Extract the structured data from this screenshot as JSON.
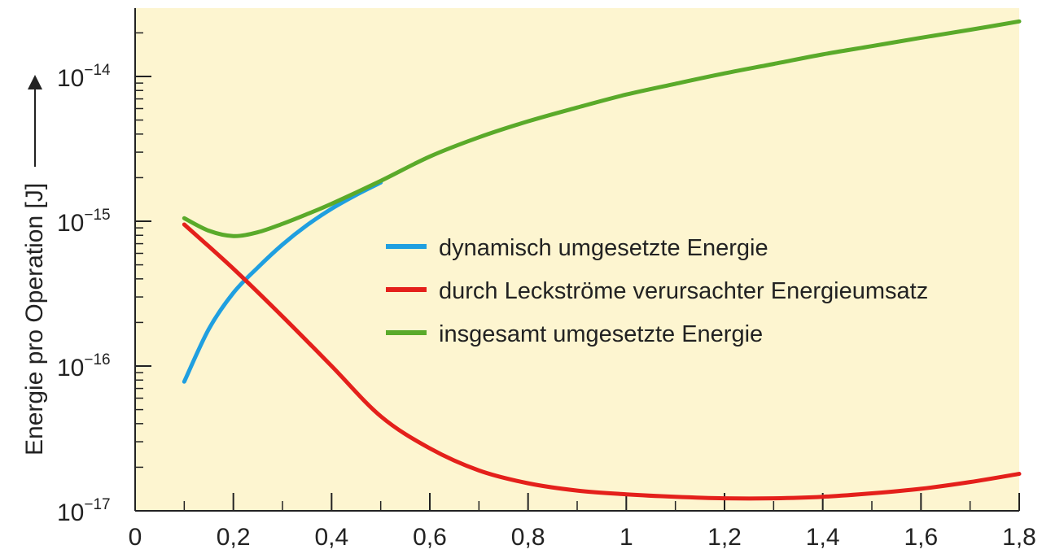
{
  "chart_data": {
    "type": "line",
    "ylabel": "Energie pro Operation [J]",
    "xlabel": "",
    "xlim": [
      0,
      1.8
    ],
    "ylim": [
      1e-17,
      3e-14
    ],
    "y_scale": "log",
    "x_ticks": [
      {
        "value": 0,
        "label": "0"
      },
      {
        "value": 0.2,
        "label": "0,2"
      },
      {
        "value": 0.4,
        "label": "0,4"
      },
      {
        "value": 0.6,
        "label": "0,6"
      },
      {
        "value": 0.8,
        "label": "0,8"
      },
      {
        "value": 1.0,
        "label": "1"
      },
      {
        "value": 1.2,
        "label": "1,2"
      },
      {
        "value": 1.4,
        "label": "1,4"
      },
      {
        "value": 1.6,
        "label": "1,6"
      },
      {
        "value": 1.8,
        "label": "1,8"
      }
    ],
    "y_ticks": [
      {
        "value": 1e-17,
        "base": "10",
        "exp": "−17"
      },
      {
        "value": 1e-16,
        "base": "10",
        "exp": "−16"
      },
      {
        "value": 1e-15,
        "base": "10",
        "exp": "−15"
      },
      {
        "value": 1e-14,
        "base": "10",
        "exp": "−14"
      }
    ],
    "grid": false,
    "plot_background": "#fdf5d0",
    "legend_position": "center-right",
    "series": [
      {
        "name": "dynamisch umgesetzte Energie",
        "color": "#1f9fe0",
        "x": [
          0.1,
          0.15,
          0.2,
          0.25,
          0.3,
          0.35,
          0.4,
          0.45,
          0.5
        ],
        "y": [
          7.8e-17,
          1.8e-16,
          3.2e-16,
          4.8e-16,
          6.9e-16,
          9.4e-16,
          1.22e-15,
          1.52e-15,
          1.85e-15
        ]
      },
      {
        "name": "durch Leckströme verursachter Energieumsatz",
        "color": "#e4201b",
        "x": [
          0.1,
          0.2,
          0.3,
          0.4,
          0.5,
          0.6,
          0.7,
          0.8,
          0.9,
          1.0,
          1.1,
          1.2,
          1.3,
          1.4,
          1.5,
          1.6,
          1.7,
          1.8
        ],
        "y": [
          9.5e-16,
          4.7e-16,
          2.2e-16,
          1e-16,
          4.5e-17,
          2.7e-17,
          1.9e-17,
          1.55e-17,
          1.38e-17,
          1.3e-17,
          1.25e-17,
          1.22e-17,
          1.22e-17,
          1.25e-17,
          1.32e-17,
          1.42e-17,
          1.58e-17,
          1.8e-17
        ]
      },
      {
        "name": "insgesamt umgesetzte Energie",
        "color": "#5aaa2a",
        "x": [
          0.1,
          0.15,
          0.2,
          0.25,
          0.3,
          0.35,
          0.4,
          0.5,
          0.6,
          0.7,
          0.8,
          0.9,
          1.0,
          1.1,
          1.2,
          1.3,
          1.4,
          1.5,
          1.6,
          1.7,
          1.8
        ],
        "y": [
          1.05e-15,
          8.6e-16,
          7.9e-16,
          8.4e-16,
          9.6e-16,
          1.12e-15,
          1.32e-15,
          1.9e-15,
          2.8e-15,
          3.8e-15,
          4.9e-15,
          6.1e-15,
          7.5e-15,
          8.9e-15,
          1.05e-14,
          1.22e-14,
          1.42e-14,
          1.62e-14,
          1.85e-14,
          2.1e-14,
          2.4e-14
        ]
      }
    ]
  }
}
